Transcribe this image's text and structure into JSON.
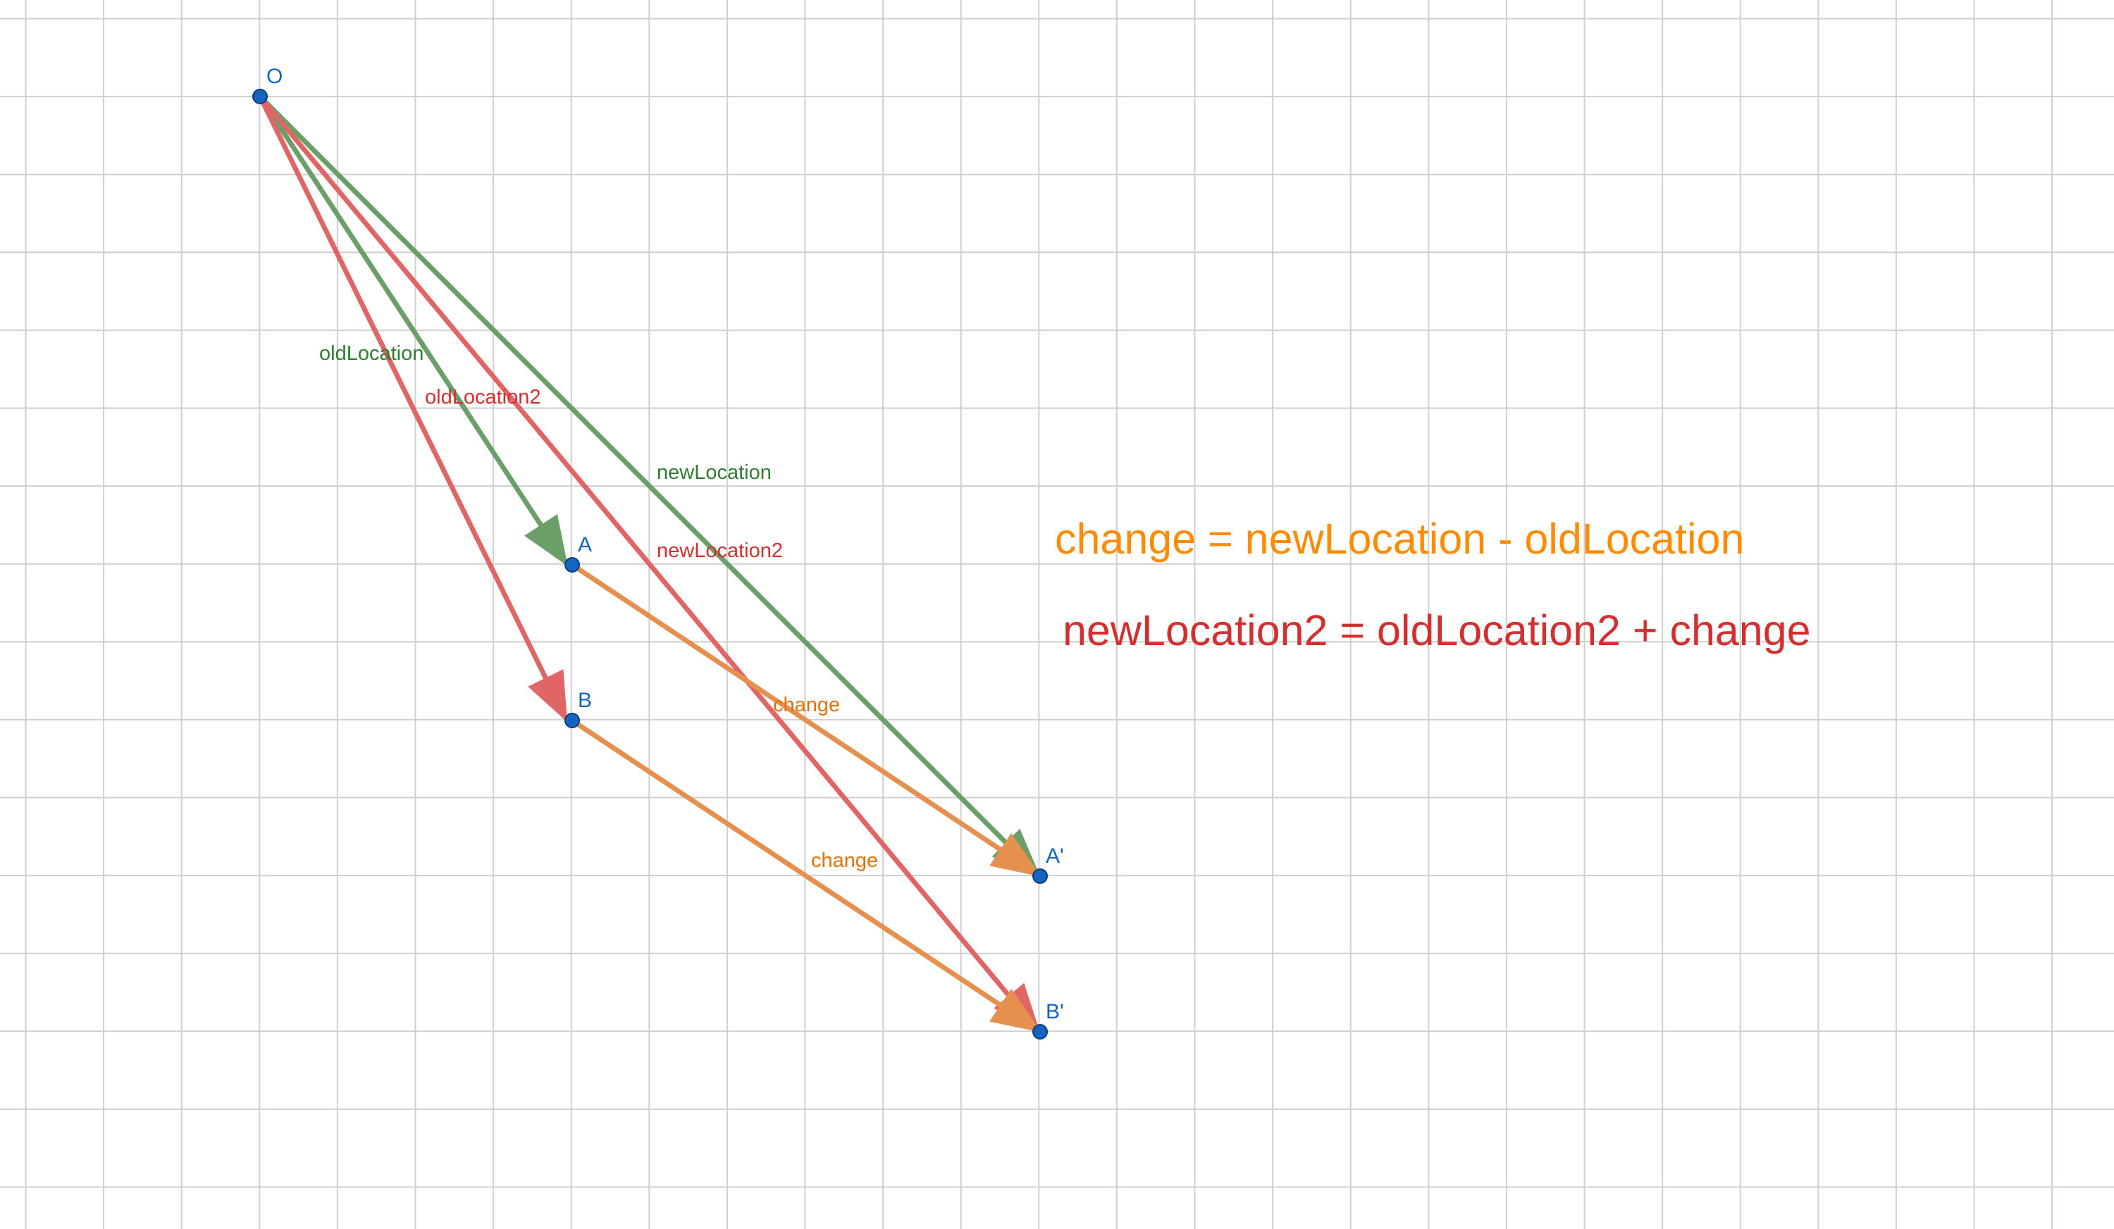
{
  "colors": {
    "grid": "#cfcfcf",
    "green": "#6a9f6a",
    "green_text": "#2e7d32",
    "red": "#e06666",
    "red_text": "#d32f2f",
    "orange": "#e69050",
    "orange_text": "#e67000",
    "orange_formula": "#ff8c00",
    "point_fill": "#1565c0",
    "point_label": "#1565c0"
  },
  "points": {
    "O": "O",
    "A": "A",
    "B": "B",
    "A_prime": "A'",
    "B_prime": "B'"
  },
  "vectors": {
    "oldLocation": "oldLocation",
    "oldLocation2": "oldLocation2",
    "newLocation": "newLocation",
    "newLocation2": "newLocation2",
    "change_a": "change",
    "change_b": "change"
  },
  "formulas": {
    "change": "change = newLocation - oldLocation",
    "newLocation2": "newLocation2 = oldLocation2 + change"
  }
}
